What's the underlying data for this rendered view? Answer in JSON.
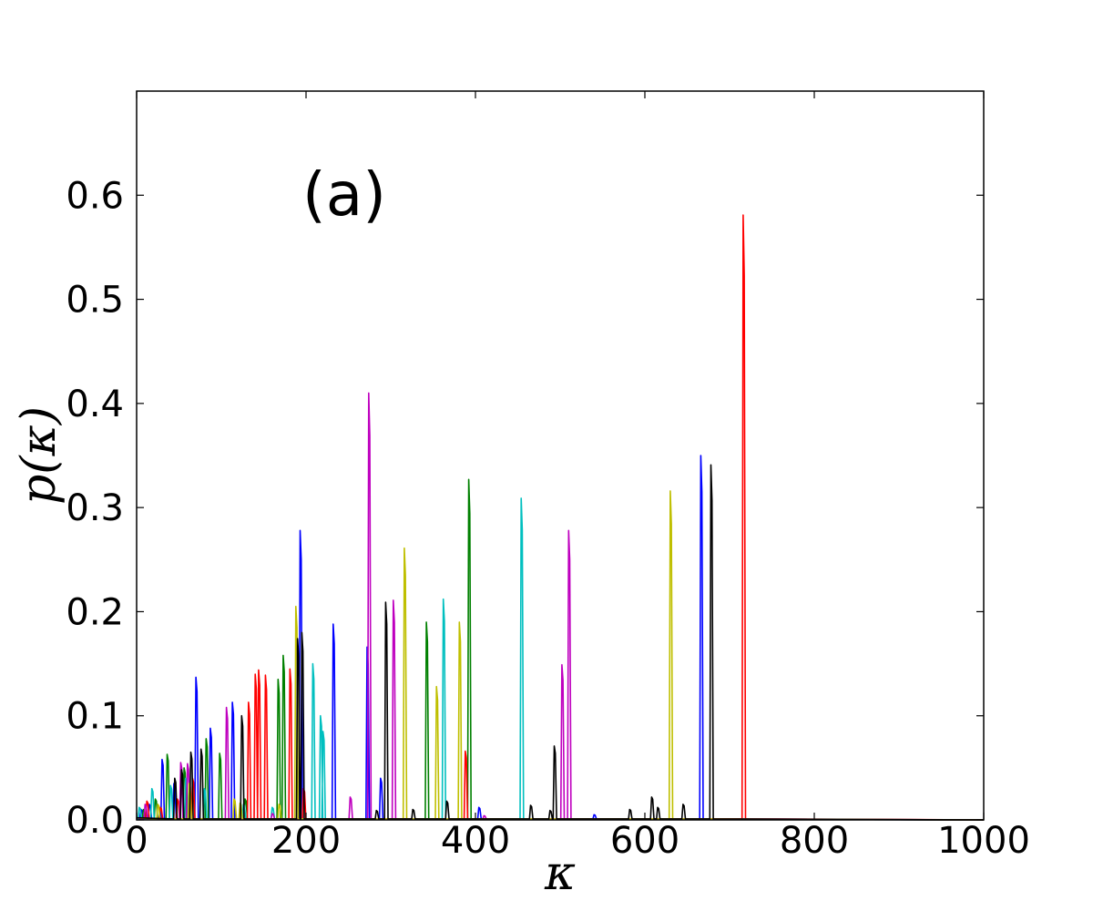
{
  "chart_data": {
    "type": "line",
    "panel_label": "(a)",
    "xlabel": "κ",
    "ylabel": "p(κ)",
    "xlim": [
      0,
      1000
    ],
    "ylim": [
      0,
      0.7
    ],
    "x_ticks": [
      0,
      200,
      400,
      600,
      800,
      1000
    ],
    "x_tick_labels": [
      "0",
      "200",
      "400",
      "600",
      "800",
      "1000"
    ],
    "y_ticks": [
      0.0,
      0.1,
      0.2,
      0.3,
      0.4,
      0.5,
      0.6
    ],
    "y_tick_labels": [
      "0.0",
      "0.1",
      "0.2",
      "0.3",
      "0.4",
      "0.5",
      "0.6"
    ],
    "grid": false,
    "legend": "none",
    "colors": {
      "blue": "#0000ff",
      "green": "#008000",
      "red": "#ff0000",
      "cyan": "#00bfbf",
      "magenta": "#bf00bf",
      "yellow": "#bfbf00",
      "black": "#000000"
    },
    "series": [
      {
        "color": "blue",
        "peaks": [
          [
            5,
            0.01
          ],
          [
            15,
            0.015
          ],
          [
            30,
            0.058
          ],
          [
            44,
            0.035
          ],
          [
            70,
            0.137
          ],
          [
            87,
            0.088
          ],
          [
            113,
            0.113
          ],
          [
            193,
            0.278
          ],
          [
            232,
            0.188
          ],
          [
            272,
            0.166
          ],
          [
            288,
            0.04
          ],
          [
            404,
            0.012
          ],
          [
            540,
            0.005
          ],
          [
            666,
            0.35
          ]
        ]
      },
      {
        "color": "green",
        "peaks": [
          [
            8,
            0.01
          ],
          [
            22,
            0.02
          ],
          [
            36,
            0.063
          ],
          [
            56,
            0.05
          ],
          [
            82,
            0.078
          ],
          [
            98,
            0.064
          ],
          [
            128,
            0.02
          ],
          [
            167,
            0.135
          ],
          [
            173,
            0.158
          ],
          [
            342,
            0.19
          ],
          [
            392,
            0.327
          ]
        ]
      },
      {
        "color": "red",
        "peaks": [
          [
            12,
            0.018
          ],
          [
            28,
            0.012
          ],
          [
            48,
            0.02
          ],
          [
            66,
            0.04
          ],
          [
            132,
            0.113
          ],
          [
            140,
            0.14
          ],
          [
            144,
            0.144
          ],
          [
            152,
            0.139
          ],
          [
            181,
            0.145
          ],
          [
            197,
            0.03
          ],
          [
            388,
            0.066
          ],
          [
            716,
            0.581
          ]
        ]
      },
      {
        "color": "cyan",
        "peaks": [
          [
            3,
            0.012
          ],
          [
            18,
            0.03
          ],
          [
            40,
            0.033
          ],
          [
            58,
            0.04
          ],
          [
            80,
            0.03
          ],
          [
            126,
            0.015
          ],
          [
            160,
            0.012
          ],
          [
            208,
            0.15
          ],
          [
            217,
            0.1
          ],
          [
            220,
            0.085
          ],
          [
            362,
            0.212
          ],
          [
            454,
            0.309
          ]
        ]
      },
      {
        "color": "magenta",
        "peaks": [
          [
            10,
            0.015
          ],
          [
            52,
            0.055
          ],
          [
            60,
            0.054
          ],
          [
            106,
            0.108
          ],
          [
            160,
            0.006
          ],
          [
            252,
            0.022
          ],
          [
            274,
            0.41
          ],
          [
            303,
            0.211
          ],
          [
            410,
            0.004
          ],
          [
            502,
            0.149
          ],
          [
            510,
            0.278
          ]
        ]
      },
      {
        "color": "yellow",
        "peaks": [
          [
            25,
            0.015
          ],
          [
            62,
            0.035
          ],
          [
            115,
            0.02
          ],
          [
            122,
            0.016
          ],
          [
            168,
            0.015
          ],
          [
            188,
            0.205
          ],
          [
            316,
            0.261
          ],
          [
            354,
            0.128
          ],
          [
            381,
            0.19
          ],
          [
            630,
            0.316
          ]
        ]
      },
      {
        "color": "black",
        "peaks": [
          [
            45,
            0.04
          ],
          [
            53,
            0.048
          ],
          [
            64,
            0.065
          ],
          [
            76,
            0.068
          ],
          [
            124,
            0.1
          ],
          [
            190,
            0.174
          ],
          [
            195,
            0.18
          ],
          [
            283,
            0.009
          ],
          [
            294,
            0.209
          ],
          [
            326,
            0.01
          ],
          [
            366,
            0.018
          ],
          [
            465,
            0.014
          ],
          [
            488,
            0.009
          ],
          [
            493,
            0.071
          ],
          [
            582,
            0.01
          ],
          [
            608,
            0.022
          ],
          [
            615,
            0.012
          ],
          [
            645,
            0.015
          ],
          [
            678,
            0.341
          ]
        ]
      }
    ]
  }
}
